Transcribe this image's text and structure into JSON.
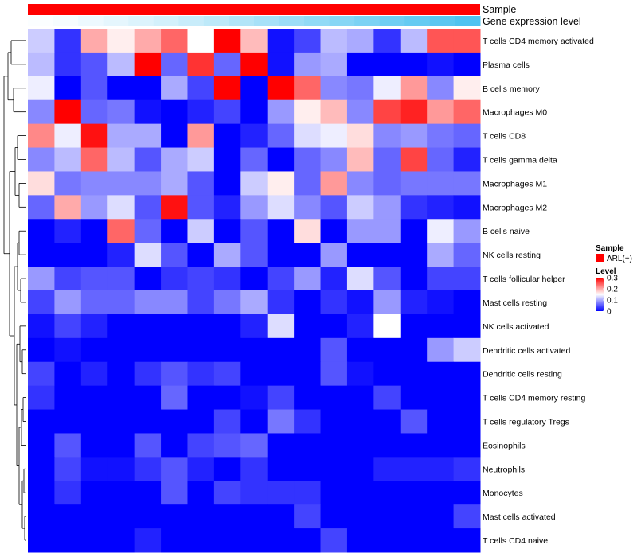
{
  "chart_data": {
    "type": "heatmap",
    "annotations": {
      "sample_label": "Sample",
      "gene_label": "Gene expression level",
      "sample_color": "#ff0000",
      "gene_expression": [
        0.02,
        0.04,
        0.08,
        0.12,
        0.16,
        0.2,
        0.25,
        0.3,
        0.35,
        0.4,
        0.45,
        0.5,
        0.55,
        0.6,
        0.65,
        0.7,
        0.75,
        0.8
      ]
    },
    "rows": [
      "T cells CD4 memory activated",
      "Plasma cells",
      "B cells memory",
      "Macrophages M0",
      "T cells CD8",
      "T cells gamma delta",
      "Macrophages M1",
      "Macrophages M2",
      "B cells naive",
      "NK cells resting",
      "T cells follicular helper",
      "Mast cells resting",
      "NK cells activated",
      "Dendritic cells activated",
      "Dendritic cells resting",
      "T cells CD4 memory resting",
      "T cells regulatory  Tregs",
      "Eosinophils",
      "Neutrophils",
      "Monocytes",
      "Mast cells activated",
      "T cells CD4 naive"
    ],
    "values": [
      [
        0.12,
        0.03,
        0.2,
        0.16,
        0.2,
        0.24,
        0.15,
        0.33,
        0.19,
        0.01,
        0.04,
        0.11,
        0.1,
        0.03,
        0.11,
        0.25,
        0.25
      ],
      [
        0.11,
        0.03,
        0.05,
        0.11,
        0.32,
        0.06,
        0.27,
        0.06,
        0.33,
        0.01,
        0.09,
        0.1,
        0.0,
        0.0,
        0.0,
        0.01,
        0.0
      ],
      [
        0.14,
        0.0,
        0.05,
        0.0,
        0.0,
        0.1,
        0.04,
        0.33,
        0.0,
        0.33,
        0.24,
        0.08,
        0.07,
        0.14,
        0.21,
        0.08,
        0.16
      ],
      [
        0.08,
        0.33,
        0.06,
        0.07,
        0.01,
        0.0,
        0.02,
        0.04,
        0.0,
        0.09,
        0.16,
        0.19,
        0.08,
        0.26,
        0.28,
        0.21,
        0.24
      ],
      [
        0.22,
        0.14,
        0.29,
        0.1,
        0.1,
        0.0,
        0.21,
        0.0,
        0.02,
        0.06,
        0.13,
        0.14,
        0.17,
        0.08,
        0.09,
        0.07,
        0.06
      ],
      [
        0.08,
        0.11,
        0.24,
        0.11,
        0.05,
        0.1,
        0.12,
        0.0,
        0.06,
        0.0,
        0.06,
        0.08,
        0.19,
        0.06,
        0.26,
        0.06,
        0.02
      ],
      [
        0.17,
        0.07,
        0.08,
        0.08,
        0.08,
        0.1,
        0.05,
        0.0,
        0.12,
        0.16,
        0.06,
        0.21,
        0.08,
        0.06,
        0.07,
        0.07,
        0.07
      ],
      [
        0.06,
        0.2,
        0.09,
        0.13,
        0.05,
        0.29,
        0.05,
        0.02,
        0.09,
        0.13,
        0.08,
        0.05,
        0.12,
        0.09,
        0.03,
        0.02,
        0.01
      ],
      [
        0.0,
        0.02,
        0.0,
        0.24,
        0.06,
        0.0,
        0.12,
        0.0,
        0.05,
        0.0,
        0.17,
        0.0,
        0.09,
        0.09,
        0.0,
        0.14,
        0.09
      ],
      [
        0.0,
        0.0,
        0.0,
        0.02,
        0.13,
        0.05,
        0.0,
        0.1,
        0.05,
        0.0,
        0.0,
        0.09,
        0.0,
        0.0,
        0.0,
        0.1,
        0.06
      ],
      [
        0.09,
        0.04,
        0.05,
        0.05,
        0.0,
        0.03,
        0.04,
        0.03,
        0.0,
        0.04,
        0.09,
        0.02,
        0.13,
        0.05,
        0.0,
        0.04,
        0.04
      ],
      [
        0.04,
        0.09,
        0.06,
        0.06,
        0.08,
        0.08,
        0.04,
        0.07,
        0.1,
        0.03,
        0.0,
        0.03,
        0.01,
        0.09,
        0.02,
        0.01,
        0.0
      ],
      [
        0.01,
        0.04,
        0.02,
        0.0,
        0.0,
        0.0,
        0.0,
        0.0,
        0.02,
        0.13,
        0.0,
        0.0,
        0.02,
        0.15,
        0.0,
        0.0,
        0.0
      ],
      [
        0.0,
        0.01,
        0.0,
        0.0,
        0.0,
        0.0,
        0.0,
        0.0,
        0.0,
        0.0,
        0.0,
        0.05,
        0.0,
        0.0,
        0.0,
        0.09,
        0.12
      ],
      [
        0.04,
        0.0,
        0.02,
        0.0,
        0.03,
        0.05,
        0.03,
        0.04,
        0.0,
        0.0,
        0.0,
        0.05,
        0.01,
        0.0,
        0.0,
        0.0,
        0.0
      ],
      [
        0.03,
        0.0,
        0.0,
        0.0,
        0.0,
        0.06,
        0.0,
        0.0,
        0.01,
        0.04,
        0.0,
        0.0,
        0.0,
        0.04,
        0.0,
        0.0,
        0.0
      ],
      [
        0.0,
        0.0,
        0.0,
        0.0,
        0.0,
        0.0,
        0.0,
        0.04,
        0.0,
        0.07,
        0.03,
        0.0,
        0.0,
        0.0,
        0.05,
        0.0,
        0.0
      ],
      [
        0.0,
        0.05,
        0.0,
        0.0,
        0.05,
        0.0,
        0.04,
        0.05,
        0.06,
        0.0,
        0.0,
        0.0,
        0.0,
        0.0,
        0.0,
        0.0,
        0.0
      ],
      [
        0.0,
        0.04,
        0.01,
        0.01,
        0.03,
        0.05,
        0.02,
        0.0,
        0.03,
        0.0,
        0.0,
        0.0,
        0.0,
        0.02,
        0.02,
        0.02,
        0.03
      ],
      [
        0.0,
        0.03,
        0.0,
        0.0,
        0.0,
        0.05,
        0.0,
        0.04,
        0.03,
        0.03,
        0.03,
        0.0,
        0.0,
        0.0,
        0.0,
        0.0,
        0.0
      ],
      [
        0.0,
        0.0,
        0.0,
        0.0,
        0.0,
        0.0,
        0.0,
        0.0,
        0.0,
        0.0,
        0.04,
        0.0,
        0.0,
        0.0,
        0.0,
        0.0,
        0.04
      ],
      [
        0.0,
        0.0,
        0.0,
        0.0,
        0.02,
        0.0,
        0.0,
        0.0,
        0.0,
        0.0,
        0.0,
        0.04,
        0.0,
        0.0,
        0.0,
        0.0,
        0.0
      ]
    ],
    "color_scale": {
      "min": 0,
      "max": 0.3,
      "low": "#0000ff",
      "mid": "#ffffff",
      "high": "#ff0000",
      "breaks": [
        0.3,
        0.2,
        0.1,
        0
      ],
      "break_labels": [
        "0.3",
        "0.2",
        "0.1",
        "0"
      ]
    },
    "legend": {
      "position": "right",
      "sample_title": "Sample",
      "sample_entry": "ARL(+)",
      "level_title": "Level"
    },
    "gene_scale": {
      "low": "#ffffff",
      "high": "#4fc3f0"
    }
  }
}
